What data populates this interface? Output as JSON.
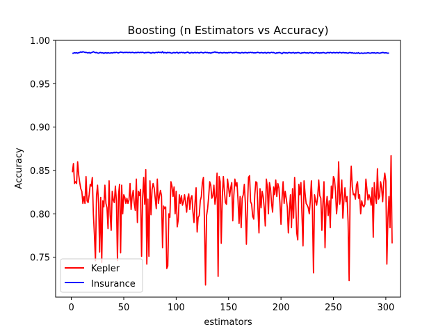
{
  "chart_data": {
    "type": "line",
    "title": "Boosting (n Estimators vs Accuracy)",
    "xlabel": "estimators",
    "ylabel": "Accuracy",
    "xlim": [
      -15,
      314
    ],
    "ylim": [
      0.704,
      1.0
    ],
    "xticks": [
      0,
      50,
      100,
      150,
      200,
      250,
      300
    ],
    "yticks": [
      0.75,
      0.8,
      0.85,
      0.9,
      0.95,
      1.0
    ],
    "xtick_labels": [
      "0",
      "50",
      "100",
      "150",
      "200",
      "250",
      "300"
    ],
    "ytick_labels": [
      "0.75",
      "0.80",
      "0.85",
      "0.90",
      "0.95",
      "1.00"
    ],
    "grid": false,
    "legend_position": "lower-left",
    "series": [
      {
        "name": "Kepler",
        "color": "#ff0000",
        "x_start": 1,
        "x_step": 1,
        "values": [
          0.848,
          0.858,
          0.835,
          0.837,
          0.835,
          0.86,
          0.845,
          0.836,
          0.829,
          0.826,
          0.812,
          0.82,
          0.812,
          0.843,
          0.815,
          0.813,
          0.822,
          0.834,
          0.832,
          0.842,
          0.8,
          0.776,
          0.746,
          0.821,
          0.833,
          0.812,
          0.756,
          0.819,
          0.744,
          0.815,
          0.808,
          0.833,
          0.812,
          0.807,
          0.783,
          0.838,
          0.799,
          0.781,
          0.826,
          0.816,
          0.813,
          0.832,
          0.815,
          0.746,
          0.822,
          0.834,
          0.755,
          0.833,
          0.8,
          0.822,
          0.819,
          0.812,
          0.818,
          0.812,
          0.816,
          0.835,
          0.805,
          0.82,
          0.827,
          0.812,
          0.804,
          0.84,
          0.79,
          0.826,
          0.821,
          0.828,
          0.751,
          0.818,
          0.842,
          0.811,
          0.851,
          0.742,
          0.817,
          0.751,
          0.838,
          0.799,
          0.828,
          0.835,
          0.83,
          0.818,
          0.806,
          0.84,
          0.812,
          0.82,
          0.827,
          0.821,
          0.761,
          0.809,
          0.806,
          0.808,
          0.737,
          0.74,
          0.8,
          0.796,
          0.837,
          0.832,
          0.82,
          0.831,
          0.8,
          0.826,
          0.785,
          0.793,
          0.822,
          0.812,
          0.821,
          0.81,
          0.814,
          0.822,
          0.813,
          0.802,
          0.818,
          0.823,
          0.805,
          0.818,
          0.821,
          0.802,
          0.79,
          0.813,
          0.83,
          0.779,
          0.796,
          0.798,
          0.815,
          0.82,
          0.836,
          0.842,
          0.79,
          0.718,
          0.798,
          0.806,
          0.82,
          0.837,
          0.833,
          0.818,
          0.821,
          0.833,
          0.811,
          0.82,
          0.847,
          0.728,
          0.843,
          0.837,
          0.766,
          0.82,
          0.843,
          0.826,
          0.813,
          0.811,
          0.84,
          0.83,
          0.82,
          0.83,
          0.836,
          0.792,
          0.821,
          0.84,
          0.832,
          0.836,
          0.816,
          0.789,
          0.82,
          0.784,
          0.818,
          0.822,
          0.834,
          0.812,
          0.765,
          0.808,
          0.842,
          0.844,
          0.814,
          0.811,
          0.797,
          0.794,
          0.822,
          0.837,
          0.836,
          0.805,
          0.778,
          0.829,
          0.807,
          0.826,
          0.82,
          0.807,
          0.786,
          0.84,
          0.831,
          0.8,
          0.836,
          0.829,
          0.812,
          0.802,
          0.831,
          0.822,
          0.839,
          0.82,
          0.835,
          0.83,
          0.812,
          0.788,
          0.818,
          0.837,
          0.812,
          0.826,
          0.818,
          0.808,
          0.778,
          0.803,
          0.822,
          0.784,
          0.829,
          0.795,
          0.842,
          0.814,
          0.778,
          0.77,
          0.834,
          0.822,
          0.836,
          0.799,
          0.763,
          0.838,
          0.823,
          0.812,
          0.81,
          0.807,
          0.8,
          0.816,
          0.838,
          0.803,
          0.732,
          0.822,
          0.815,
          0.81,
          0.82,
          0.839,
          0.821,
          0.818,
          0.781,
          0.812,
          0.837,
          0.761,
          0.808,
          0.82,
          0.798,
          0.815,
          0.784,
          0.832,
          0.818,
          0.843,
          0.84,
          0.826,
          0.8,
          0.815,
          0.86,
          0.811,
          0.822,
          0.839,
          0.795,
          0.815,
          0.83,
          0.814,
          0.82,
          0.791,
          0.723,
          0.828,
          0.855,
          0.831,
          0.822,
          0.823,
          0.817,
          0.833,
          0.837,
          0.818,
          0.822,
          0.8,
          0.815,
          0.81,
          0.808,
          0.811,
          0.84,
          0.828,
          0.816,
          0.822,
          0.818,
          0.81,
          0.83,
          0.773,
          0.836,
          0.82,
          0.812,
          0.852,
          0.817,
          0.82,
          0.837,
          0.83,
          0.814,
          0.836,
          0.847,
          0.838,
          0.742,
          0.795,
          0.82,
          0.784,
          0.867,
          0.766
        ]
      },
      {
        "name": "Insurance",
        "color": "#0000ff",
        "x_start": 1,
        "x_step": 1,
        "values": [
          0.985,
          0.9852,
          0.9858,
          0.9855,
          0.9858,
          0.9852,
          0.9858,
          0.986,
          0.9868,
          0.9862,
          0.987,
          0.9865,
          0.986,
          0.9862,
          0.9858,
          0.9855,
          0.986,
          0.9852,
          0.9858,
          0.9862,
          0.987,
          0.9862,
          0.9858,
          0.986,
          0.9855,
          0.9852,
          0.9858,
          0.986,
          0.9855,
          0.9858,
          0.985,
          0.9856,
          0.9858,
          0.9852,
          0.9858,
          0.9855,
          0.9853,
          0.9858,
          0.9855,
          0.9858,
          0.986,
          0.9858,
          0.9862,
          0.9858,
          0.9855,
          0.986,
          0.9865,
          0.9862,
          0.986,
          0.9858,
          0.9862,
          0.986,
          0.9863,
          0.9858,
          0.9862,
          0.986,
          0.9858,
          0.9862,
          0.986,
          0.9856,
          0.986,
          0.9858,
          0.986,
          0.9862,
          0.9858,
          0.9862,
          0.986,
          0.9863,
          0.9858,
          0.9855,
          0.986,
          0.9858,
          0.9862,
          0.986,
          0.9858,
          0.9852,
          0.9858,
          0.986,
          0.9855,
          0.9858,
          0.9862,
          0.9858,
          0.9865,
          0.986,
          0.9862,
          0.9858,
          0.987,
          0.9855,
          0.986,
          0.9858,
          0.9855,
          0.9862,
          0.9858,
          0.986,
          0.9855,
          0.9852,
          0.9858,
          0.986,
          0.9855,
          0.986,
          0.9862,
          0.9852,
          0.986,
          0.9858,
          0.9862,
          0.9858,
          0.986,
          0.9855,
          0.9858,
          0.986,
          0.9865,
          0.9858,
          0.9852,
          0.9858,
          0.986,
          0.9855,
          0.9858,
          0.9862,
          0.9856,
          0.986,
          0.9858,
          0.9855,
          0.986,
          0.9862,
          0.9858,
          0.9855,
          0.986,
          0.9862,
          0.9858,
          0.986,
          0.9855,
          0.9858,
          0.9852,
          0.9858,
          0.986,
          0.9862,
          0.9868,
          0.986,
          0.9862,
          0.9858,
          0.9855,
          0.986,
          0.9858,
          0.9855,
          0.9858,
          0.986,
          0.9856,
          0.9858,
          0.9855,
          0.986,
          0.9858,
          0.9862,
          0.9858,
          0.9855,
          0.986,
          0.9858,
          0.9862,
          0.986,
          0.9856,
          0.9858,
          0.9852,
          0.9858,
          0.986,
          0.9855,
          0.9858,
          0.986,
          0.9858,
          0.9855,
          0.986,
          0.9858,
          0.9862,
          0.9858,
          0.986,
          0.9855,
          0.9858,
          0.9856,
          0.986,
          0.9862,
          0.9858,
          0.9855,
          0.986,
          0.9858,
          0.9855,
          0.9858,
          0.986,
          0.9852,
          0.9858,
          0.986,
          0.9855,
          0.9858,
          0.9862,
          0.9858,
          0.986,
          0.9855,
          0.985,
          0.9858,
          0.9855,
          0.986,
          0.9858,
          0.9855,
          0.9845,
          0.9858,
          0.986,
          0.9855,
          0.9858,
          0.9852,
          0.9858,
          0.986,
          0.9856,
          0.9855,
          0.9858,
          0.986,
          0.9852,
          0.9858,
          0.9855,
          0.986,
          0.9858,
          0.9855,
          0.985,
          0.9858,
          0.9855,
          0.986,
          0.9858,
          0.9855,
          0.9858,
          0.9852,
          0.9858,
          0.986,
          0.9855,
          0.9858,
          0.985,
          0.9855,
          0.9858,
          0.986,
          0.9855,
          0.9858,
          0.9852,
          0.9858,
          0.9855,
          0.986,
          0.9858,
          0.9855,
          0.9852,
          0.9858,
          0.986,
          0.9855,
          0.9862,
          0.9858,
          0.9855,
          0.986,
          0.9858,
          0.9856,
          0.986,
          0.9858,
          0.9855,
          0.9862,
          0.9858,
          0.9855,
          0.986,
          0.9858,
          0.9856,
          0.9858,
          0.9855,
          0.9852,
          0.9858,
          0.986,
          0.9855,
          0.9858,
          0.9852,
          0.9855,
          0.985,
          0.9855,
          0.9852,
          0.9858,
          0.9848,
          0.9852,
          0.9855,
          0.985,
          0.9852,
          0.9855,
          0.9852,
          0.9855,
          0.9858,
          0.9855,
          0.9852,
          0.9855,
          0.9858,
          0.9855,
          0.9858,
          0.9852,
          0.9855,
          0.9858,
          0.9855,
          0.9852,
          0.9855,
          0.9858,
          0.986,
          0.9858,
          0.9855,
          0.9858,
          0.9855,
          0.9852,
          0.9855
        ]
      }
    ]
  }
}
